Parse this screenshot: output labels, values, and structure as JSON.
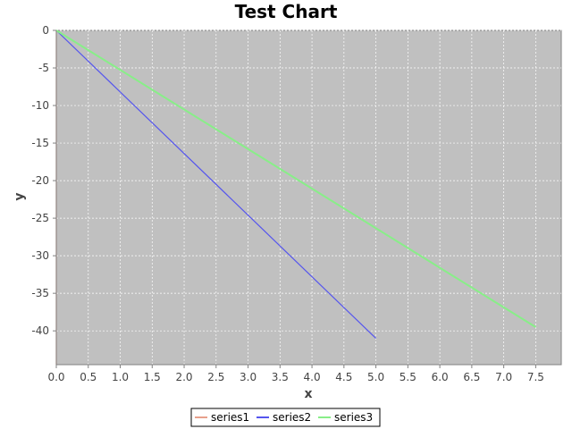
{
  "chart_data": {
    "type": "line",
    "title": "Test Chart",
    "xlabel": "x",
    "ylabel": "y",
    "xlim": [
      0,
      7.9
    ],
    "ylim": [
      -44.5,
      0
    ],
    "x_ticks": [
      "0.0",
      "0.5",
      "1.0",
      "1.5",
      "2.0",
      "2.5",
      "3.0",
      "3.5",
      "4.0",
      "4.5",
      "5.0",
      "5.5",
      "6.0",
      "6.5",
      "7.0",
      "7.5"
    ],
    "y_ticks": [
      "0",
      "-5",
      "-10",
      "-15",
      "-20",
      "-25",
      "-30",
      "-35",
      "-40"
    ],
    "grid": true,
    "legend_position": "bottom",
    "series": [
      {
        "name": "series1",
        "color": "#e8a08c",
        "x": [
          0,
          0
        ],
        "y": [
          0,
          -44.5
        ]
      },
      {
        "name": "series2",
        "color": "#5555ee",
        "x": [
          0,
          5.0
        ],
        "y": [
          0,
          -41
        ]
      },
      {
        "name": "series3",
        "color": "#88ee88",
        "x": [
          0,
          7.5
        ],
        "y": [
          0,
          -39.5
        ]
      }
    ],
    "plot_background": "#c0c0c0",
    "grid_color": "#ffffff"
  }
}
